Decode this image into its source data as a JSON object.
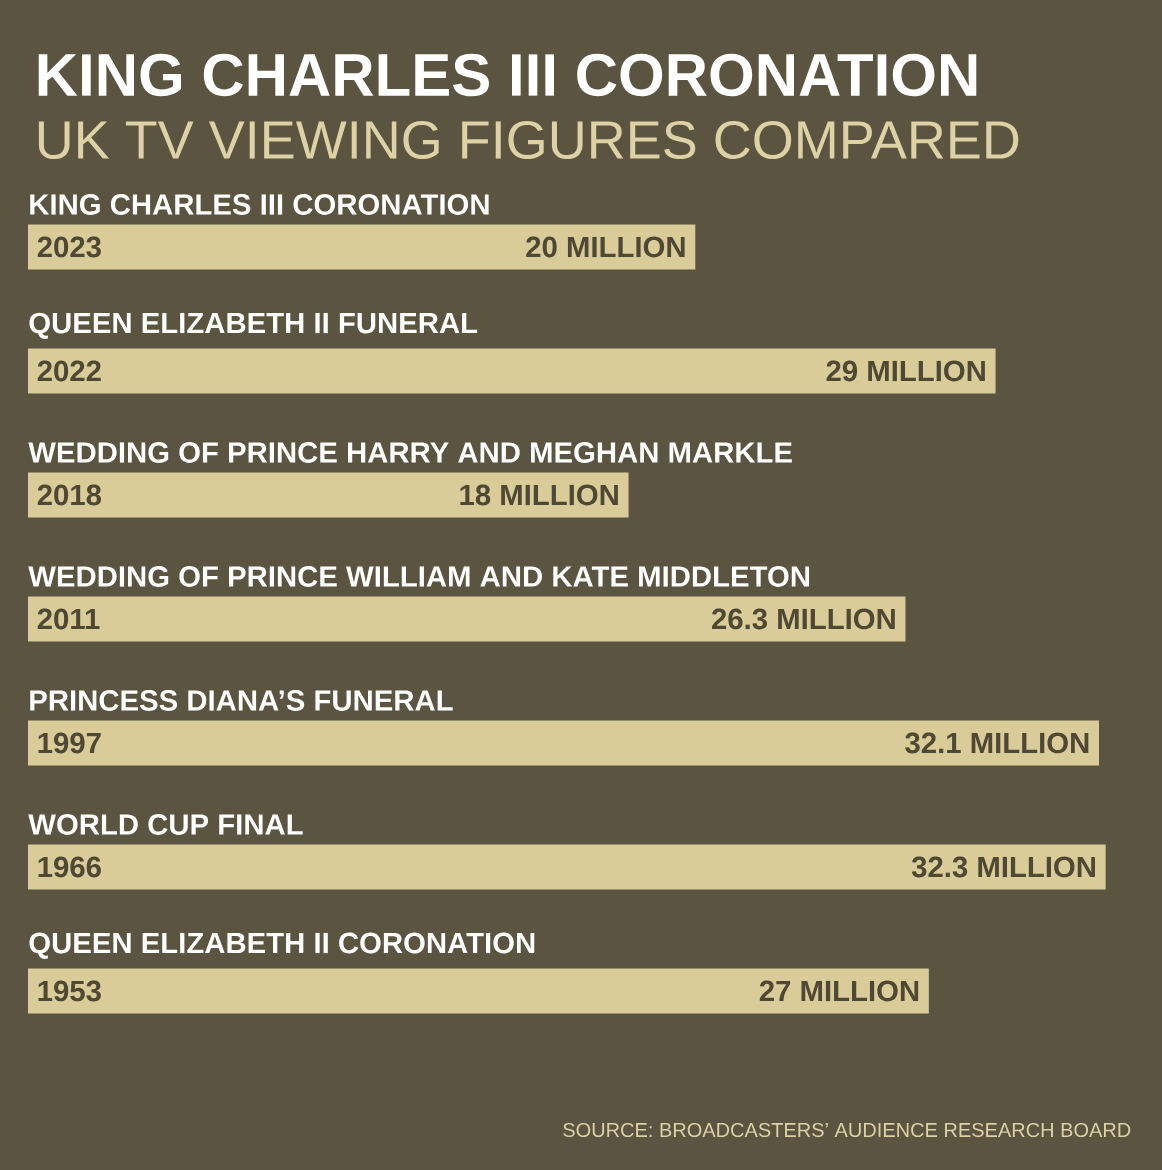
{
  "chart_data": {
    "type": "bar",
    "orientation": "horizontal",
    "title": "KING CHARLES III CORONATION",
    "subtitle": "UK TV VIEWING FIGURES COMPARED",
    "color": "#d9cc98",
    "categories": [
      "KING CHARLES III CORONATION",
      "QUEEN ELIZABETH II FUNERAL",
      "WEDDING OF PRINCE HARRY AND MEGHAN MARKLE",
      "WEDDING OF PRINCE WILLIAM AND KATE MIDDLETON",
      "PRINCESS DIANA’S FUNERAL",
      "WORLD CUP FINAL",
      "QUEEN ELIZABETH II CORONATION"
    ],
    "values": [
      20,
      29,
      18,
      26.3,
      32.1,
      32.3,
      27
    ],
    "value_labels": [
      "20 MILLION",
      "29 MILLION",
      "18 MILLION",
      "26.3 MILLION",
      "32.1 MILLION",
      "32.3 MILLION",
      "27 MILLION"
    ],
    "annotations": [
      "2023",
      "2022",
      "2018",
      "2011",
      "1997",
      "1966",
      "1953",
      "SOURCE: BROADCASTERS’ AUDIENCE RESEARCH BOARD"
    ]
  }
}
